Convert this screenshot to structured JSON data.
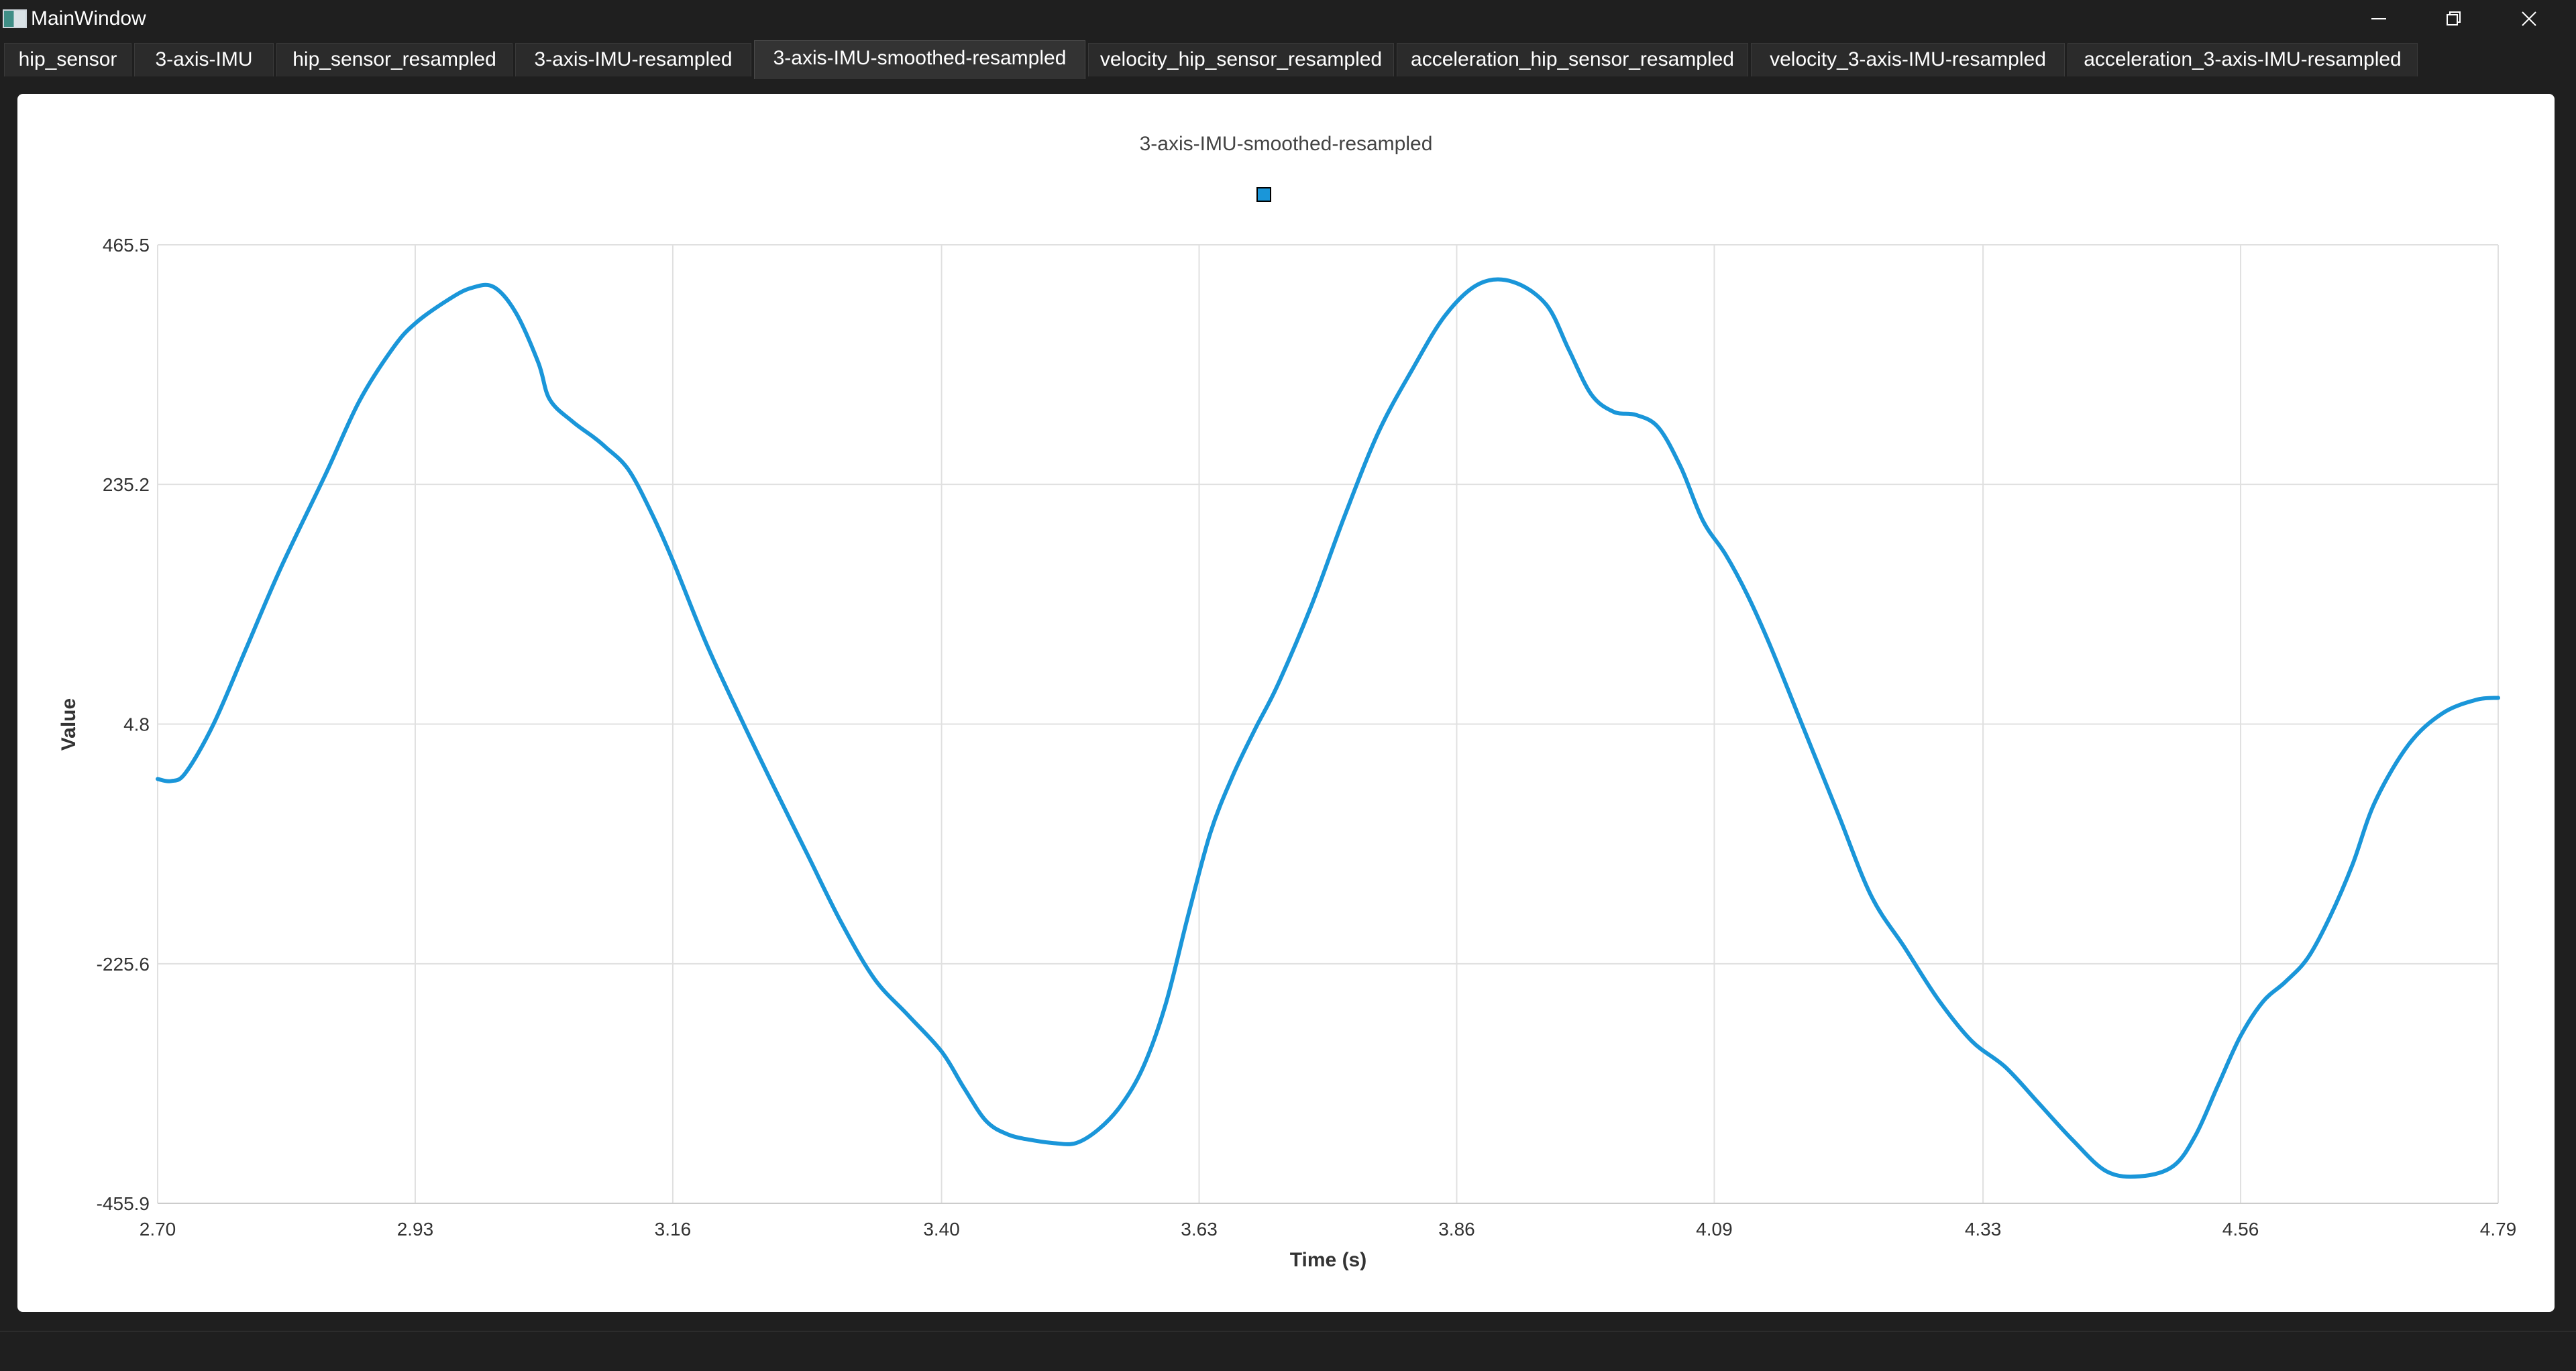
{
  "window": {
    "title": "MainWindow",
    "controls": {
      "minimize_icon": "minimize-icon",
      "maximize_icon": "restore-icon",
      "close_icon": "close-icon"
    }
  },
  "tabs": [
    {
      "label": "hip_sensor",
      "active": false
    },
    {
      "label": "3-axis-IMU",
      "active": false
    },
    {
      "label": "hip_sensor_resampled",
      "active": false
    },
    {
      "label": "3-axis-IMU-resampled",
      "active": false
    },
    {
      "label": "3-axis-IMU-smoothed-resampled",
      "active": true
    },
    {
      "label": "velocity_hip_sensor_resampled",
      "active": false
    },
    {
      "label": "acceleration_hip_sensor_resampled",
      "active": false
    },
    {
      "label": "velocity_3-axis-IMU-resampled",
      "active": false
    },
    {
      "label": "acceleration_3-axis-IMU-resampled",
      "active": false
    }
  ],
  "colors": {
    "series": "#1a96d9",
    "grid": "#e0e0e0",
    "axis_text": "#333333",
    "background": "#ffffff",
    "window": "#1f1f1f"
  },
  "chart_data": {
    "type": "line",
    "title": "3-axis-IMU-smoothed-resampled",
    "xlabel": "Time (s)",
    "ylabel": "Value",
    "xlim": [
      2.7,
      4.79
    ],
    "ylim": [
      -455.9,
      465.5
    ],
    "x_ticks": [
      "2.70",
      "2.93",
      "3.16",
      "3.40",
      "3.63",
      "3.86",
      "4.09",
      "4.33",
      "4.56",
      "4.79"
    ],
    "y_ticks": [
      "465.5",
      "235.2",
      "4.8",
      "-225.6",
      "-455.9"
    ],
    "grid": true,
    "legend": "top-center",
    "series": [
      {
        "name": "",
        "color": "#1a96d9",
        "x": [
          2.7,
          2.712,
          2.725,
          2.75,
          2.78,
          2.81,
          2.85,
          2.88,
          2.91,
          2.93,
          2.96,
          2.98,
          3.0,
          3.02,
          3.04,
          3.05,
          3.07,
          3.09,
          3.1,
          3.12,
          3.14,
          3.16,
          3.19,
          3.22,
          3.25,
          3.28,
          3.31,
          3.34,
          3.37,
          3.4,
          3.42,
          3.44,
          3.46,
          3.48,
          3.5,
          3.52,
          3.54,
          3.56,
          3.58,
          3.6,
          3.62,
          3.64,
          3.66,
          3.68,
          3.7,
          3.73,
          3.76,
          3.79,
          3.82,
          3.85,
          3.88,
          3.91,
          3.94,
          3.96,
          3.98,
          4.0,
          4.02,
          4.04,
          4.06,
          4.08,
          4.1,
          4.12,
          4.14,
          4.17,
          4.2,
          4.23,
          4.26,
          4.29,
          4.32,
          4.35,
          4.38,
          4.41,
          4.44,
          4.47,
          4.5,
          4.52,
          4.54,
          4.56,
          4.58,
          4.6,
          4.62,
          4.64,
          4.66,
          4.68,
          4.71,
          4.74,
          4.77,
          4.79
        ],
        "values": [
          -48,
          -50,
          -42,
          5,
          80,
          155,
          245,
          315,
          366,
          390,
          413,
          424,
          425,
          400,
          352,
          317,
          296,
          280,
          271,
          250,
          210,
          162,
          82,
          12,
          -55,
          -120,
          -185,
          -240,
          -275,
          -310,
          -345,
          -377,
          -390,
          -395,
          -398,
          -398,
          -385,
          -362,
          -325,
          -265,
          -180,
          -100,
          -45,
          0,
          42,
          118,
          205,
          285,
          345,
          398,
          428,
          430,
          408,
          365,
          322,
          305,
          302,
          290,
          252,
          200,
          168,
          128,
          80,
          0,
          -80,
          -160,
          -210,
          -260,
          -300,
          -325,
          -360,
          -395,
          -425,
          -430,
          -420,
          -390,
          -342,
          -295,
          -262,
          -243,
          -220,
          -180,
          -130,
          -70,
          -15,
          15,
          28,
          30
        ]
      }
    ]
  }
}
